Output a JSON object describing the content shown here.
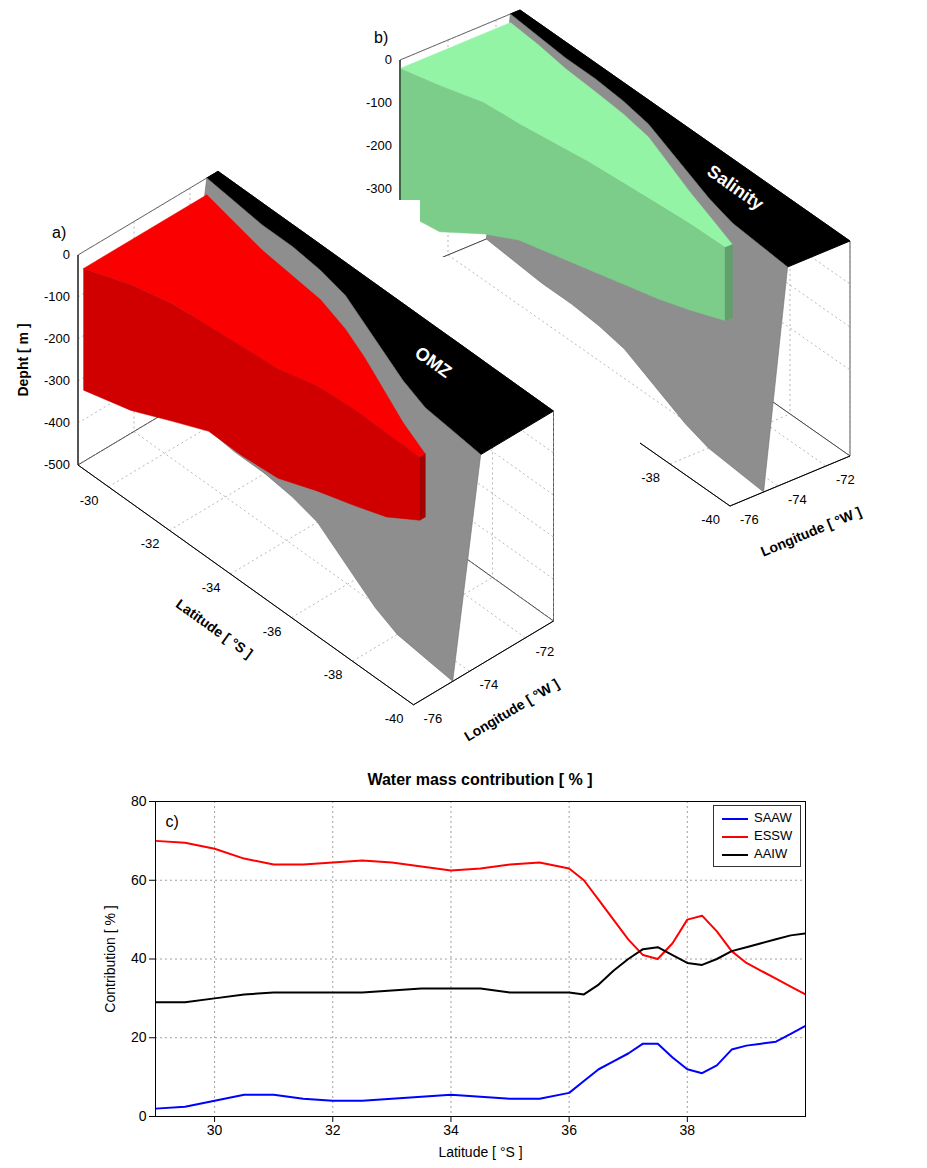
{
  "chart_data": [
    {
      "type": "surface3d",
      "label": "a)",
      "annotation": "OMZ",
      "xlabel": "Latitude [ °S ]",
      "ylabel": "Longitude [ °W ]",
      "zlabel": "Depht [ m ]",
      "xlim": [
        -29,
        -40
      ],
      "xticks": [
        -30,
        -32,
        -34,
        -36,
        -38,
        -40
      ],
      "ylim": [
        -76,
        -71
      ],
      "yticks": [
        -76,
        -74,
        -72
      ],
      "zlim": [
        0,
        -500
      ],
      "zticks": [
        0,
        -100,
        -200,
        -300,
        -400,
        -500
      ],
      "grid": true,
      "coast": {
        "latitude": [
          -29,
          -30,
          -31,
          -32,
          -33,
          -34,
          -35,
          -36,
          -37,
          -38,
          -39,
          -40
        ],
        "longitude": [
          -71.4,
          -71.5,
          -71.6,
          -71.6,
          -71.7,
          -71.9,
          -72.3,
          -72.7,
          -73.1,
          -73.4,
          -73.5,
          -73.6
        ]
      },
      "surface": {
        "color": "#d10000",
        "latitude": [
          -29,
          -30,
          -31,
          -32,
          -33,
          -34,
          -35,
          -36,
          -37,
          -38
        ],
        "upper_depth": [
          -40,
          -50,
          -60,
          -70,
          -70,
          -80,
          -80,
          -90,
          -100,
          -110
        ],
        "lower_depth": [
          -330,
          -350,
          -340,
          -320,
          -330,
          -340,
          -330,
          -320,
          -300,
          -260
        ],
        "west_longitude": [
          -75.8,
          -75.2,
          -74.8,
          -74.6,
          -74.5,
          -74.3,
          -74,
          -73.8,
          -73.7,
          -73.6
        ]
      }
    },
    {
      "type": "surface3d",
      "label": "b)",
      "annotation": "Salinity",
      "ylabel": "Longitude [ °W ]",
      "xlim": [
        -29,
        -40
      ],
      "xticks": [
        -38,
        -40
      ],
      "ylim": [
        -76,
        -71
      ],
      "yticks": [
        -76,
        -74,
        -72
      ],
      "zlim": [
        0,
        -500
      ],
      "zticks": [
        0,
        -100,
        -200,
        -300
      ],
      "grid": true,
      "coast": {
        "latitude": [
          -29,
          -30,
          -31,
          -32,
          -33,
          -34,
          -35,
          -36,
          -37,
          -38,
          -39,
          -40
        ],
        "longitude": [
          -71.4,
          -71.5,
          -71.6,
          -71.6,
          -71.7,
          -71.9,
          -72.3,
          -72.7,
          -73.1,
          -73.4,
          -73.5,
          -73.6
        ]
      },
      "surface": {
        "color": "#7ccc8a",
        "latitude": [
          -29,
          -30,
          -31,
          -32,
          -33,
          -34,
          -35,
          -36,
          -37,
          -38
        ],
        "upper_depth": [
          -20,
          -20,
          -25,
          -30,
          -30,
          -30,
          -35,
          -40,
          -40,
          -50
        ],
        "lower_depth": [
          -350,
          -360,
          -330,
          -300,
          -290,
          -280,
          -270,
          -260,
          -240,
          -220
        ],
        "west_longitude": [
          -76,
          -75.6,
          -75,
          -74.8,
          -74.6,
          -74.4,
          -74.2,
          -74,
          -73.9,
          -73.7
        ]
      }
    },
    {
      "type": "line",
      "title": "Water mass contribution [ % ]",
      "label": "c)",
      "xlabel": "Latitude [ °S ]",
      "ylabel": "Contribution [ % ]",
      "x": [
        29,
        29.5,
        30,
        30.5,
        31,
        31.5,
        32,
        32.5,
        33,
        33.5,
        34,
        34.5,
        35,
        35.5,
        36,
        36.25,
        36.5,
        36.75,
        37,
        37.25,
        37.5,
        37.75,
        38,
        38.25,
        38.5,
        38.75,
        39,
        39.25,
        39.5,
        39.75,
        40
      ],
      "series": [
        {
          "name": "SAAW",
          "color": "#0000ff",
          "values": [
            2,
            2.5,
            4,
            5.5,
            5.5,
            4.5,
            4,
            4,
            4.5,
            5,
            5.5,
            5,
            4.5,
            4.5,
            6,
            9,
            12,
            14,
            16,
            18.5,
            18.5,
            15,
            12,
            11,
            13,
            17,
            18,
            18.5,
            19,
            21,
            23
          ]
        },
        {
          "name": "ESSW",
          "color": "#ff0000",
          "values": [
            70,
            69.5,
            68,
            65.5,
            64,
            64,
            64.5,
            65,
            64.5,
            63.5,
            62.5,
            63,
            64,
            64.5,
            63,
            60,
            55,
            50,
            45,
            41,
            40,
            44,
            50,
            51,
            47,
            42,
            39,
            37,
            35,
            33,
            31
          ]
        },
        {
          "name": "AAIW",
          "color": "#000000",
          "values": [
            29,
            29,
            30,
            31,
            31.5,
            31.5,
            31.5,
            31.5,
            32,
            32.5,
            32.5,
            32.5,
            31.5,
            31.5,
            31.5,
            31,
            33.5,
            37,
            40,
            42.5,
            43,
            41,
            39,
            38.5,
            40,
            42,
            43,
            44,
            45,
            46,
            46.5
          ]
        }
      ],
      "xlim": [
        29,
        40
      ],
      "xticks": [
        30,
        32,
        34,
        36,
        38
      ],
      "ylim": [
        0,
        80
      ],
      "yticks": [
        0,
        20,
        40,
        60,
        80
      ],
      "grid": true,
      "legend": "upper right"
    }
  ]
}
